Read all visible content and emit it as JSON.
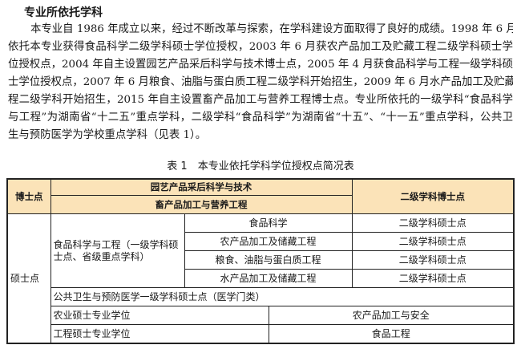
{
  "section_heading": "专业所依托学科",
  "paragraph_lines": [
    "本专业自 1986 年成立以来，经过不断改革与探索，在学科建设方面取得了良好的成绩。1998 年 6 月",
    "依托本专业获得食品科学二级学科硕士学位授权，2003 年 6 月获农产品加工及贮藏工程二级学科硕士学",
    "位授权点，2004 年自主设置园艺产品采后科学与技术博士点，2005 年 4 月获食品科学与工程一级学科硕",
    "士学位授权点，2007 年 6 月粮食、油脂与蛋白质工程二级学科开始招生，2009 年 6 月水产品加工及贮藏工",
    "程二级学科开始招生，2015 年自主设置畜产品加工与营养工程博士点。专业所依托的一级学科“食品科学",
    "与工程”为湖南省“十二五”重点学科，二级学科“食品科学”为湖南省“十五”、“十一五”重点学科，公共卫",
    "生与预防医学为学校重点学科（见表 1）。"
  ],
  "table_caption": "表 1　本专业依托学科学位授权点简况表",
  "table": {
    "header_color": "#fbe3b8",
    "doctoral": {
      "label": "博士点",
      "programs": [
        "园艺产品采后科学与技术",
        "畜产品加工与营养工程"
      ],
      "type": "二级学科博士点"
    },
    "masters": {
      "label": "硕士点",
      "first_level": "食品科学与工程（一级学科硕士点、省级重点学科）",
      "rows": [
        {
          "program": "食品科学",
          "type": "二级学科硕士点"
        },
        {
          "program": "农产品加工及储藏工程",
          "type": "二级学科硕士点"
        },
        {
          "program": "粮食、油脂与蛋白质工程",
          "type": "二级学科硕士点"
        },
        {
          "program": "水产品加工及储藏工程",
          "type": "二级学科硕士点"
        }
      ],
      "public_health": "公共卫生与预防医学一级学科硕士点（医学门类）",
      "professional": [
        {
          "degree": "农业硕士专业学位",
          "field": "农产品加工与安全"
        },
        {
          "degree": "工程硕士专业学位",
          "field": "食品工程"
        }
      ]
    }
  }
}
